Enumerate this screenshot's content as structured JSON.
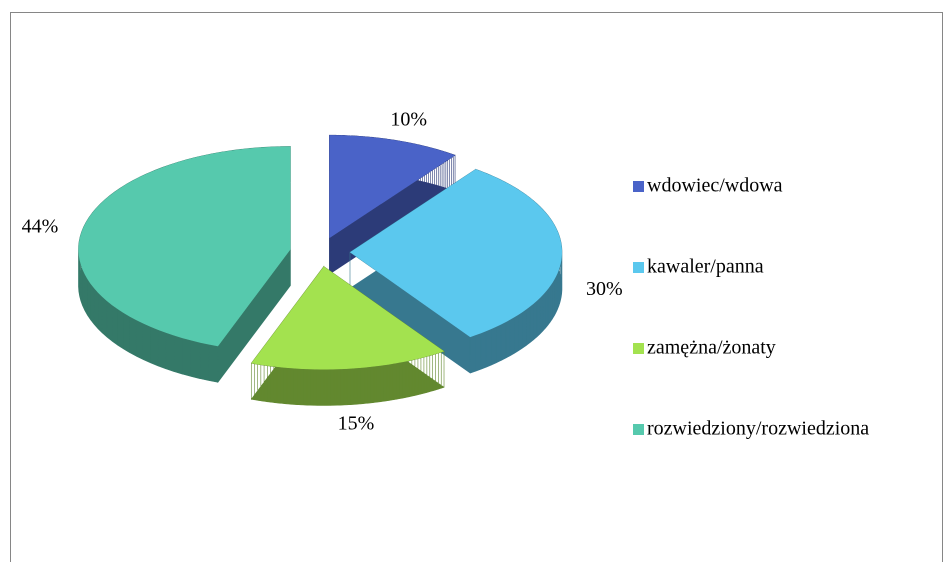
{
  "chart_data": {
    "type": "pie",
    "categories": [
      "wdowiec/wdowa",
      "kawaler/panna",
      "zamężna/żonaty",
      "rozwiedziony/rozwiedziona"
    ],
    "values": [
      10,
      30,
      15,
      44
    ],
    "value_labels": [
      "10%",
      "30%",
      "15%",
      "44%"
    ],
    "colors": [
      "#4a63c8",
      "#5bc8ee",
      "#a3e24f",
      "#56c9ad"
    ],
    "legend": "right"
  }
}
